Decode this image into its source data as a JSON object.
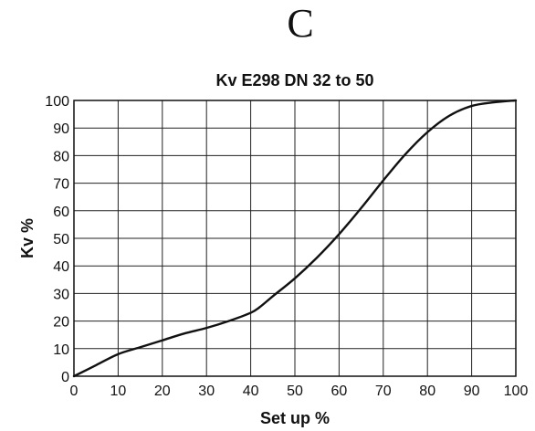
{
  "figure_letter": "C",
  "chart_data": {
    "type": "line",
    "title": "Kv  E298 DN 32 to 50",
    "xlabel": "Set up %",
    "ylabel": "Kv %",
    "xlim": [
      0,
      100
    ],
    "ylim": [
      0,
      100
    ],
    "x_ticks": [
      0,
      10,
      20,
      30,
      40,
      50,
      60,
      70,
      80,
      90,
      100
    ],
    "y_ticks": [
      0,
      10,
      20,
      30,
      40,
      50,
      60,
      70,
      80,
      90,
      100
    ],
    "grid": true,
    "series": [
      {
        "x": [
          0,
          5,
          10,
          15,
          20,
          25,
          30,
          35,
          40,
          42,
          45,
          50,
          55,
          60,
          65,
          70,
          75,
          80,
          85,
          90,
          95,
          100
        ],
        "y": [
          0,
          4,
          8,
          10.5,
          13,
          15.5,
          17.5,
          20,
          23,
          25,
          29,
          35.5,
          43,
          51.5,
          61,
          71,
          80.5,
          88.5,
          94.5,
          98,
          99.3,
          100
        ]
      }
    ]
  }
}
